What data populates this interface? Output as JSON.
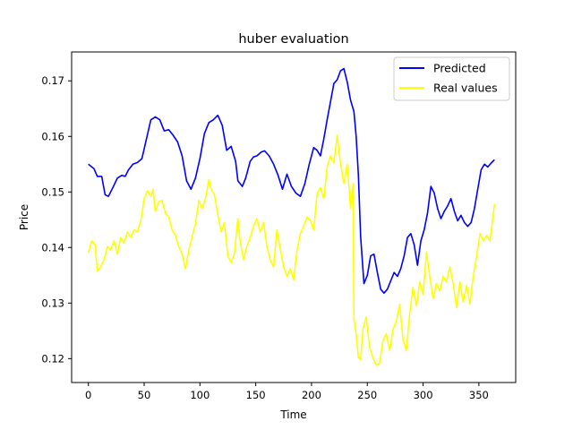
{
  "chart_data": {
    "type": "line",
    "title": "huber evaluation",
    "xlabel": "Time",
    "ylabel": "Price",
    "xlim": [
      -15,
      383
    ],
    "ylim": [
      0.1157,
      0.1752
    ],
    "x_ticks": [
      0,
      50,
      100,
      150,
      200,
      250,
      300,
      350
    ],
    "y_ticks": [
      0.12,
      0.13,
      0.14,
      0.15,
      0.16,
      0.17
    ],
    "x_tick_labels": [
      "0",
      "50",
      "100",
      "150",
      "200",
      "250",
      "300",
      "350"
    ],
    "y_tick_labels": [
      "0.12",
      "0.13",
      "0.14",
      "0.15",
      "0.16",
      "0.17"
    ],
    "grid": false,
    "legend_position": "upper right",
    "series": [
      {
        "name": "Predicted",
        "color": "#0000ff",
        "points": [
          [
            0,
            0.155
          ],
          [
            5,
            0.1542
          ],
          [
            8,
            0.1528
          ],
          [
            12,
            0.1528
          ],
          [
            15,
            0.1495
          ],
          [
            18,
            0.1492
          ],
          [
            22,
            0.1508
          ],
          [
            26,
            0.1525
          ],
          [
            30,
            0.153
          ],
          [
            33,
            0.1528
          ],
          [
            36,
            0.154
          ],
          [
            40,
            0.155
          ],
          [
            44,
            0.1553
          ],
          [
            48,
            0.156
          ],
          [
            52,
            0.1595
          ],
          [
            56,
            0.163
          ],
          [
            60,
            0.1635
          ],
          [
            64,
            0.163
          ],
          [
            68,
            0.161
          ],
          [
            72,
            0.1612
          ],
          [
            76,
            0.1602
          ],
          [
            80,
            0.159
          ],
          [
            84,
            0.1565
          ],
          [
            88,
            0.152
          ],
          [
            92,
            0.1505
          ],
          [
            96,
            0.1525
          ],
          [
            100,
            0.156
          ],
          [
            104,
            0.1605
          ],
          [
            108,
            0.1625
          ],
          [
            112,
            0.163
          ],
          [
            116,
            0.1638
          ],
          [
            120,
            0.162
          ],
          [
            124,
            0.1575
          ],
          [
            128,
            0.1582
          ],
          [
            132,
            0.1555
          ],
          [
            134,
            0.152
          ],
          [
            138,
            0.151
          ],
          [
            141,
            0.1525
          ],
          [
            145,
            0.1555
          ],
          [
            148,
            0.1563
          ],
          [
            151,
            0.1565
          ],
          [
            155,
            0.1572
          ],
          [
            158,
            0.1574
          ],
          [
            162,
            0.1565
          ],
          [
            166,
            0.155
          ],
          [
            170,
            0.153
          ],
          [
            174,
            0.1505
          ],
          [
            178,
            0.1532
          ],
          [
            182,
            0.151
          ],
          [
            186,
            0.1498
          ],
          [
            190,
            0.1492
          ],
          [
            194,
            0.1515
          ],
          [
            198,
            0.155
          ],
          [
            202,
            0.158
          ],
          [
            205,
            0.1575
          ],
          [
            208,
            0.1565
          ],
          [
            211,
            0.1595
          ],
          [
            214,
            0.163
          ],
          [
            217,
            0.1662
          ],
          [
            220,
            0.1695
          ],
          [
            223,
            0.1702
          ],
          [
            226,
            0.1718
          ],
          [
            229,
            0.1722
          ],
          [
            232,
            0.1698
          ],
          [
            235,
            0.1665
          ],
          [
            238,
            0.1645
          ],
          [
            240,
            0.16
          ],
          [
            242,
            0.153
          ],
          [
            244,
            0.142
          ],
          [
            247,
            0.1335
          ],
          [
            250,
            0.135
          ],
          [
            253,
            0.1385
          ],
          [
            256,
            0.1388
          ],
          [
            259,
            0.1355
          ],
          [
            262,
            0.1325
          ],
          [
            265,
            0.1318
          ],
          [
            268,
            0.1325
          ],
          [
            271,
            0.134
          ],
          [
            274,
            0.1355
          ],
          [
            277,
            0.1348
          ],
          [
            280,
            0.1362
          ],
          [
            283,
            0.1385
          ],
          [
            286,
            0.1418
          ],
          [
            289,
            0.1425
          ],
          [
            292,
            0.1405
          ],
          [
            295,
            0.1368
          ],
          [
            298,
            0.1412
          ],
          [
            301,
            0.1432
          ],
          [
            304,
            0.1462
          ],
          [
            307,
            0.151
          ],
          [
            310,
            0.1498
          ],
          [
            313,
            0.147
          ],
          [
            316,
            0.1452
          ],
          [
            319,
            0.1465
          ],
          [
            322,
            0.1475
          ],
          [
            325,
            0.1488
          ],
          [
            328,
            0.1465
          ],
          [
            331,
            0.1448
          ],
          [
            334,
            0.1458
          ],
          [
            337,
            0.1445
          ],
          [
            340,
            0.1438
          ],
          [
            343,
            0.1445
          ],
          [
            346,
            0.147
          ],
          [
            349,
            0.1505
          ],
          [
            352,
            0.154
          ],
          [
            355,
            0.155
          ],
          [
            358,
            0.1545
          ],
          [
            361,
            0.1552
          ],
          [
            364,
            0.1558
          ]
        ]
      },
      {
        "name": "Real values",
        "color": "#ffff00",
        "points": [
          [
            0,
            0.139
          ],
          [
            3,
            0.1412
          ],
          [
            6,
            0.1405
          ],
          [
            8,
            0.1358
          ],
          [
            11,
            0.1365
          ],
          [
            14,
            0.1378
          ],
          [
            17,
            0.1402
          ],
          [
            20,
            0.1396
          ],
          [
            23,
            0.1412
          ],
          [
            26,
            0.1388
          ],
          [
            29,
            0.1418
          ],
          [
            32,
            0.1408
          ],
          [
            35,
            0.1428
          ],
          [
            38,
            0.1418
          ],
          [
            41,
            0.1432
          ],
          [
            44,
            0.1428
          ],
          [
            47,
            0.1448
          ],
          [
            50,
            0.1488
          ],
          [
            53,
            0.1502
          ],
          [
            56,
            0.1492
          ],
          [
            58,
            0.1505
          ],
          [
            60,
            0.1465
          ],
          [
            63,
            0.1482
          ],
          [
            66,
            0.1485
          ],
          [
            69,
            0.1462
          ],
          [
            72,
            0.1455
          ],
          [
            75,
            0.1432
          ],
          [
            78,
            0.1422
          ],
          [
            81,
            0.1402
          ],
          [
            84,
            0.1388
          ],
          [
            87,
            0.1362
          ],
          [
            90,
            0.1395
          ],
          [
            93,
            0.142
          ],
          [
            96,
            0.1442
          ],
          [
            99,
            0.1485
          ],
          [
            102,
            0.147
          ],
          [
            105,
            0.1488
          ],
          [
            108,
            0.1522
          ],
          [
            110,
            0.1505
          ],
          [
            113,
            0.1495
          ],
          [
            116,
            0.146
          ],
          [
            119,
            0.1428
          ],
          [
            122,
            0.1445
          ],
          [
            125,
            0.1385
          ],
          [
            128,
            0.1372
          ],
          [
            131,
            0.139
          ],
          [
            134,
            0.1452
          ],
          [
            136,
            0.1412
          ],
          [
            139,
            0.1378
          ],
          [
            142,
            0.1402
          ],
          [
            145,
            0.1418
          ],
          [
            148,
            0.1438
          ],
          [
            151,
            0.1452
          ],
          [
            154,
            0.1428
          ],
          [
            157,
            0.1445
          ],
          [
            160,
            0.1402
          ],
          [
            163,
            0.1378
          ],
          [
            166,
            0.1365
          ],
          [
            169,
            0.1432
          ],
          [
            172,
            0.1398
          ],
          [
            175,
            0.1365
          ],
          [
            178,
            0.1348
          ],
          [
            181,
            0.1362
          ],
          [
            184,
            0.1342
          ],
          [
            187,
            0.1395
          ],
          [
            190,
            0.1425
          ],
          [
            193,
            0.1438
          ],
          [
            196,
            0.1455
          ],
          [
            199,
            0.1448
          ],
          [
            202,
            0.1432
          ],
          [
            205,
            0.1498
          ],
          [
            208,
            0.1508
          ],
          [
            211,
            0.1488
          ],
          [
            214,
            0.1545
          ],
          [
            217,
            0.1565
          ],
          [
            220,
            0.1552
          ],
          [
            223,
            0.1602
          ],
          [
            226,
            0.1552
          ],
          [
            229,
            0.1515
          ],
          [
            232,
            0.155
          ],
          [
            235,
            0.147
          ],
          [
            237,
            0.1515
          ],
          [
            238,
            0.1272
          ],
          [
            240,
            0.1245
          ],
          [
            242,
            0.1202
          ],
          [
            244,
            0.1198
          ],
          [
            246,
            0.1252
          ],
          [
            249,
            0.1275
          ],
          [
            252,
            0.1222
          ],
          [
            255,
            0.1202
          ],
          [
            258,
            0.1188
          ],
          [
            261,
            0.1192
          ],
          [
            264,
            0.1232
          ],
          [
            267,
            0.1245
          ],
          [
            270,
            0.1215
          ],
          [
            273,
            0.1252
          ],
          [
            276,
            0.1268
          ],
          [
            279,
            0.1298
          ],
          [
            282,
            0.1235
          ],
          [
            285,
            0.1215
          ],
          [
            288,
            0.1282
          ],
          [
            291,
            0.1328
          ],
          [
            294,
            0.1295
          ],
          [
            297,
            0.1338
          ],
          [
            300,
            0.1315
          ],
          [
            303,
            0.1392
          ],
          [
            306,
            0.1348
          ],
          [
            309,
            0.1308
          ],
          [
            312,
            0.1335
          ],
          [
            315,
            0.1322
          ],
          [
            318,
            0.1348
          ],
          [
            321,
            0.1338
          ],
          [
            324,
            0.1365
          ],
          [
            327,
            0.1335
          ],
          [
            330,
            0.1292
          ],
          [
            333,
            0.1338
          ],
          [
            336,
            0.1302
          ],
          [
            339,
            0.1332
          ],
          [
            342,
            0.1298
          ],
          [
            345,
            0.1348
          ],
          [
            348,
            0.1385
          ],
          [
            351,
            0.1425
          ],
          [
            354,
            0.1412
          ],
          [
            357,
            0.1422
          ],
          [
            360,
            0.1412
          ],
          [
            362,
            0.1445
          ],
          [
            364,
            0.1478
          ]
        ]
      }
    ]
  }
}
